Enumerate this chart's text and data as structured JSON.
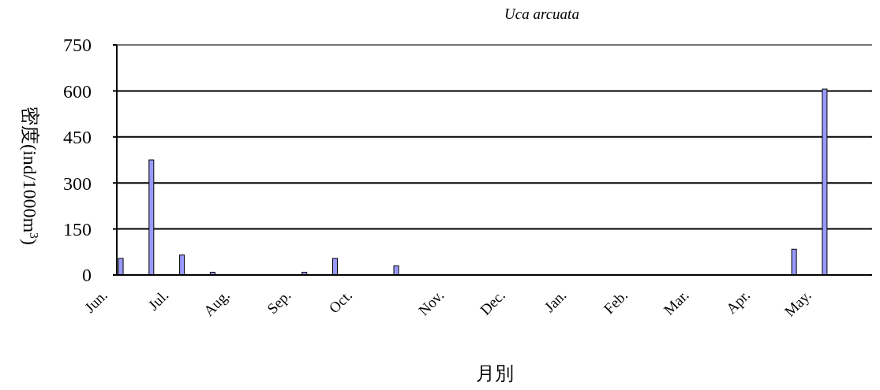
{
  "chart_data": {
    "type": "bar",
    "title": "Uca arcuata",
    "xlabel": "月別",
    "ylabel": "密度(ind/1000m$^{3}$)",
    "categories": [
      "Jun.",
      null,
      "Jul.",
      null,
      "Aug.",
      null,
      "Sep.",
      null,
      "Oct.",
      null,
      null,
      "Nov.",
      null,
      "Dec.",
      null,
      "Jan.",
      null,
      "Feb.",
      null,
      "Mar.",
      null,
      "Apr.",
      null,
      "May.",
      null
    ],
    "values": [
      54,
      375,
      65,
      9,
      null,
      null,
      9,
      54,
      null,
      30,
      null,
      null,
      null,
      null,
      null,
      null,
      null,
      null,
      null,
      null,
      null,
      null,
      84,
      606,
      null
    ],
    "color": "#9999ff",
    "ylim": [
      0,
      750
    ],
    "yticks": [
      0,
      150,
      300,
      450,
      600,
      750
    ],
    "grid": "y"
  }
}
